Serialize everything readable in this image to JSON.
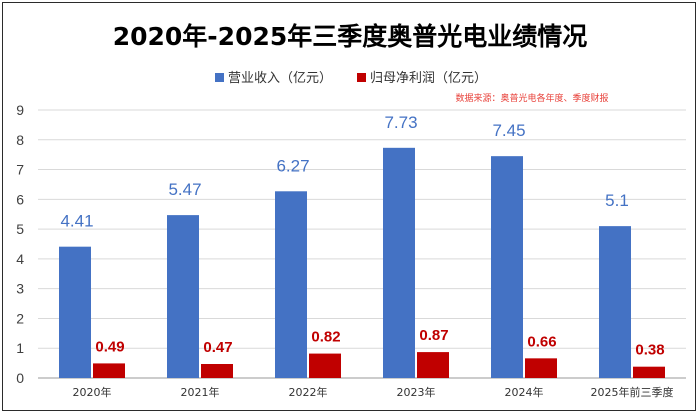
{
  "chart_data": {
    "type": "bar",
    "title": "2020年-2025年三季度奥普光电业绩情况",
    "source_note": "数据来源：奥普光电各年度、季度财报",
    "categories": [
      "2020年",
      "2021年",
      "2022年",
      "2023年",
      "2024年",
      "2025年前三季度"
    ],
    "series": [
      {
        "name": "营业收入（亿元）",
        "color": "#4472C4",
        "values": [
          4.41,
          5.47,
          6.27,
          7.73,
          7.45,
          5.1
        ]
      },
      {
        "name": "归母净利润（亿元）",
        "color": "#C00000",
        "values": [
          0.49,
          0.47,
          0.82,
          0.87,
          0.66,
          0.38
        ]
      }
    ],
    "data_labels": [
      [
        "4.41",
        "5.47",
        "6.27",
        "7.73",
        "7.45",
        "5.1"
      ],
      [
        "0.49",
        "0.47",
        "0.82",
        "0.87",
        "0.66",
        "0.38"
      ]
    ],
    "yticks": [
      "0",
      "1",
      "2",
      "3",
      "4",
      "5",
      "6",
      "7",
      "8",
      "9"
    ],
    "ylim": [
      0,
      9
    ],
    "grid": true,
    "legend_position": "top"
  }
}
